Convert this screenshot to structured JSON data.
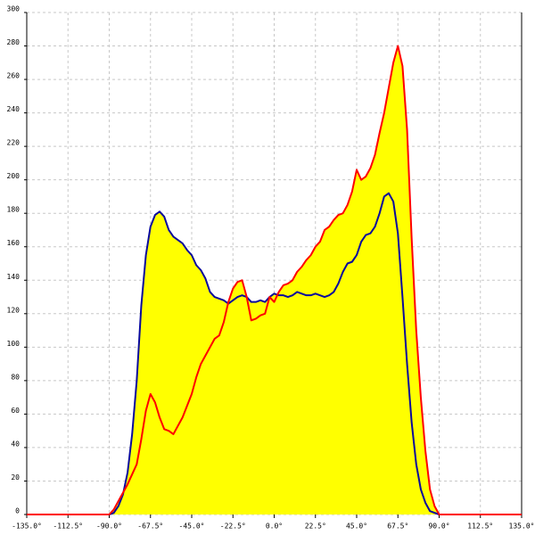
{
  "chart_data": {
    "type": "area_line",
    "x": [
      -135,
      -90,
      -87.5,
      -85,
      -82.5,
      -80,
      -77.5,
      -75,
      -72.5,
      -70,
      -67.5,
      -65,
      -62.5,
      -60,
      -57.5,
      -55,
      -52.5,
      -50,
      -47.5,
      -45,
      -42.5,
      -40,
      -37.5,
      -35,
      -32.5,
      -30,
      -27.5,
      -25,
      -22.5,
      -20,
      -17.5,
      -15,
      -12.5,
      -10,
      -7.5,
      -5,
      -2.5,
      0,
      2.5,
      5,
      7.5,
      10,
      12.5,
      15,
      17.5,
      20,
      22.5,
      25,
      27.5,
      30,
      32.5,
      35,
      37.5,
      40,
      42.5,
      45,
      47.5,
      50,
      52.5,
      55,
      57.5,
      60,
      62.5,
      65,
      67.5,
      70,
      72.5,
      75,
      77.5,
      80,
      82.5,
      85,
      87.5,
      90,
      135
    ],
    "series": [
      {
        "color": "#0a0a9c",
        "values": [
          0,
          0,
          1,
          5,
          12,
          25,
          48,
          80,
          125,
          155,
          172,
          179,
          181,
          178,
          170,
          166,
          164,
          162,
          158,
          155,
          149,
          146,
          141,
          133,
          130,
          129,
          128,
          126,
          128,
          130,
          131,
          130,
          127,
          127,
          128,
          127,
          130,
          132,
          131,
          131,
          130,
          131,
          133,
          132,
          131,
          131,
          132,
          131,
          130,
          131,
          133,
          138,
          145,
          150,
          151,
          155,
          163,
          167,
          168,
          172,
          180,
          190,
          192,
          187,
          168,
          130,
          90,
          55,
          30,
          15,
          7,
          2,
          1,
          0,
          0
        ]
      },
      {
        "color": "#ff0000",
        "values": [
          0,
          0,
          3,
          8,
          13,
          18,
          24,
          30,
          45,
          62,
          72,
          67,
          58,
          51,
          50,
          48,
          53,
          58,
          65,
          72,
          82,
          90,
          95,
          100,
          105,
          107,
          115,
          127,
          135,
          139,
          140,
          130,
          116,
          117,
          119,
          120,
          130,
          127,
          133,
          137,
          138,
          140,
          145,
          148,
          152,
          155,
          160,
          163,
          170,
          172,
          176,
          179,
          180,
          185,
          193,
          206,
          200,
          202,
          207,
          215,
          228,
          240,
          255,
          270,
          280,
          268,
          230,
          165,
          110,
          70,
          38,
          15,
          5,
          0,
          0
        ]
      }
    ],
    "fill_color": "#ffff00",
    "xlim": [
      -135,
      135
    ],
    "xticks": [
      {
        "value": -135,
        "label": "-135.0°"
      },
      {
        "value": -112.5,
        "label": "-112.5°"
      },
      {
        "value": -90,
        "label": "-90.0°"
      },
      {
        "value": -67.5,
        "label": "-67.5°"
      },
      {
        "value": -45,
        "label": "-45.0°"
      },
      {
        "value": -22.5,
        "label": "-22.5°"
      },
      {
        "value": 0,
        "label": "0.0°"
      },
      {
        "value": 22.5,
        "label": "22.5°"
      },
      {
        "value": 45,
        "label": "45.0°"
      },
      {
        "value": 67.5,
        "label": "67.5°"
      },
      {
        "value": 90,
        "label": "90.0°"
      },
      {
        "value": 112.5,
        "label": "112.5°"
      },
      {
        "value": 135,
        "label": "135.0°"
      }
    ],
    "ylim": [
      0,
      300
    ],
    "yticks": [
      0,
      20,
      40,
      60,
      80,
      100,
      120,
      140,
      160,
      180,
      200,
      220,
      240,
      260,
      280,
      300
    ],
    "grid": true
  }
}
